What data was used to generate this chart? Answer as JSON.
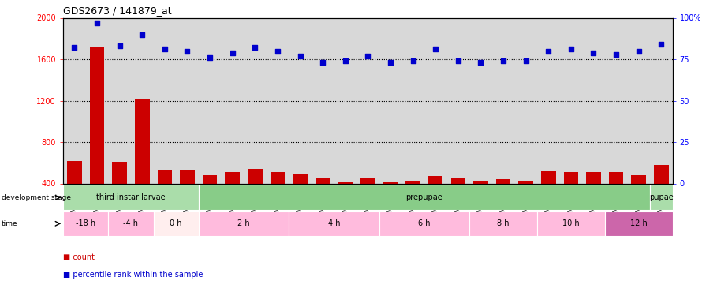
{
  "title": "GDS2673 / 141879_at",
  "samples": [
    "GSM67088",
    "GSM67089",
    "GSM67090",
    "GSM67091",
    "GSM67092",
    "GSM67093",
    "GSM67094",
    "GSM67095",
    "GSM67096",
    "GSM67097",
    "GSM67098",
    "GSM67099",
    "GSM67100",
    "GSM67101",
    "GSM67102",
    "GSM67103",
    "GSM67105",
    "GSM67106",
    "GSM67107",
    "GSM67108",
    "GSM67109",
    "GSM67111",
    "GSM67113",
    "GSM67114",
    "GSM67115",
    "GSM67116",
    "GSM67117"
  ],
  "counts": [
    620,
    1720,
    610,
    1210,
    530,
    530,
    480,
    510,
    540,
    510,
    490,
    460,
    420,
    460,
    420,
    430,
    470,
    450,
    430,
    440,
    430,
    520,
    510,
    510,
    510,
    480,
    580
  ],
  "percentile": [
    82,
    97,
    83,
    90,
    81,
    80,
    76,
    79,
    82,
    80,
    77,
    73,
    74,
    77,
    73,
    74,
    81,
    74,
    73,
    74,
    74,
    80,
    81,
    79,
    78,
    80,
    84
  ],
  "ylim_left": [
    400,
    2000
  ],
  "ylim_right": [
    0,
    100
  ],
  "yticks_left": [
    400,
    800,
    1200,
    1600,
    2000
  ],
  "yticks_right": [
    0,
    25,
    50,
    75,
    100
  ],
  "ytick_labels_right": [
    "0",
    "25",
    "50",
    "75",
    "100%"
  ],
  "hlines": [
    800,
    1200,
    1600
  ],
  "bar_color": "#cc0000",
  "scatter_color": "#0000cc",
  "background_color": "#d8d8d8",
  "dev_stage_row": [
    {
      "label": "third instar larvae",
      "start": 0,
      "end": 6,
      "color": "#aaddaa"
    },
    {
      "label": "prepupae",
      "start": 6,
      "end": 26,
      "color": "#88cc88"
    },
    {
      "label": "pupae",
      "start": 26,
      "end": 27,
      "color": "#aaddaa"
    }
  ],
  "time_row": [
    {
      "label": "-18 h",
      "start": 0,
      "end": 2,
      "color": "#ffbbdd"
    },
    {
      "label": "-4 h",
      "start": 2,
      "end": 4,
      "color": "#ffbbdd"
    },
    {
      "label": "0 h",
      "start": 4,
      "end": 6,
      "color": "#ffeeee"
    },
    {
      "label": "2 h",
      "start": 6,
      "end": 10,
      "color": "#ffbbdd"
    },
    {
      "label": "4 h",
      "start": 10,
      "end": 14,
      "color": "#ffbbdd"
    },
    {
      "label": "6 h",
      "start": 14,
      "end": 18,
      "color": "#ffbbdd"
    },
    {
      "label": "8 h",
      "start": 18,
      "end": 21,
      "color": "#ffbbdd"
    },
    {
      "label": "10 h",
      "start": 21,
      "end": 24,
      "color": "#ffbbdd"
    },
    {
      "label": "12 h",
      "start": 24,
      "end": 27,
      "color": "#cc66aa"
    }
  ],
  "legend_count_color": "#cc0000",
  "legend_pct_color": "#0000cc",
  "left_label_dev": "development stage",
  "left_label_time": "time"
}
